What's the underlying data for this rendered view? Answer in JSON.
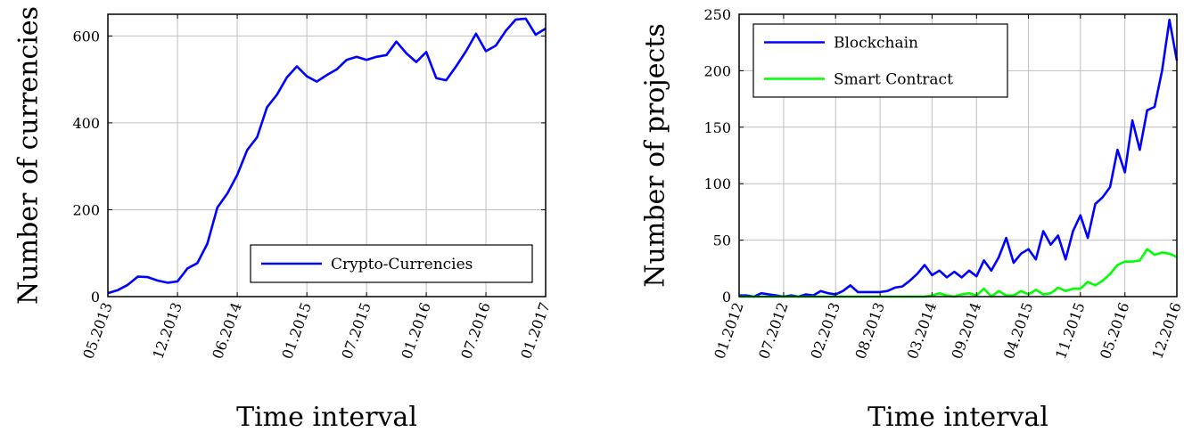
{
  "chart_data": [
    {
      "type": "line",
      "xlabel": "Time interval",
      "ylabel": "Number of currencies",
      "ylim": [
        0,
        650
      ],
      "xlim": [
        0,
        44
      ],
      "grid": true,
      "legend_position": "bottom-right",
      "x_ticks": [
        {
          "x": 0,
          "label": "05.2013"
        },
        {
          "x": 7,
          "label": "12.2013"
        },
        {
          "x": 13,
          "label": "06.2014"
        },
        {
          "x": 20,
          "label": "01.2015"
        },
        {
          "x": 26,
          "label": "07.2015"
        },
        {
          "x": 32,
          "label": "01.2016"
        },
        {
          "x": 38,
          "label": "07.2016"
        },
        {
          "x": 44,
          "label": "01.2017"
        }
      ],
      "y_ticks": [
        {
          "y": 0,
          "label": "0"
        },
        {
          "y": 200,
          "label": "200"
        },
        {
          "y": 400,
          "label": "400"
        },
        {
          "y": 600,
          "label": "600"
        }
      ],
      "series": [
        {
          "name": "Crypto-Currencies",
          "color": "#0000ff",
          "values": [
            8,
            15,
            27,
            46,
            45,
            37,
            32,
            35,
            65,
            77,
            122,
            205,
            237,
            280,
            337,
            367,
            436,
            465,
            505,
            530,
            507,
            495,
            510,
            523,
            545,
            552,
            545,
            552,
            556,
            587,
            560,
            540,
            563,
            503,
            498,
            530,
            565,
            605,
            565,
            578,
            612,
            638,
            640,
            603,
            617
          ]
        }
      ]
    },
    {
      "type": "line",
      "xlabel": "Time interval",
      "ylabel": "Number of projects",
      "ylim": [
        0,
        250
      ],
      "xlim": [
        0,
        59
      ],
      "grid": true,
      "legend_position": "top-left",
      "x_ticks": [
        {
          "x": 0,
          "label": "01.2012"
        },
        {
          "x": 6,
          "label": "07.2012"
        },
        {
          "x": 13,
          "label": "02.2013"
        },
        {
          "x": 19,
          "label": "08.2013"
        },
        {
          "x": 26,
          "label": "03.2014"
        },
        {
          "x": 32,
          "label": "09.2014"
        },
        {
          "x": 39,
          "label": "04.2015"
        },
        {
          "x": 46,
          "label": "11.2015"
        },
        {
          "x": 52,
          "label": "05.2016"
        },
        {
          "x": 59,
          "label": "12.2016"
        }
      ],
      "y_ticks": [
        {
          "y": 0,
          "label": "0"
        },
        {
          "y": 50,
          "label": "50"
        },
        {
          "y": 100,
          "label": "100"
        },
        {
          "y": 150,
          "label": "150"
        },
        {
          "y": 200,
          "label": "200"
        },
        {
          "y": 250,
          "label": "250"
        }
      ],
      "series": [
        {
          "name": "Blockchain",
          "color": "#0000ff",
          "values": [
            1,
            1,
            0,
            3,
            2,
            1,
            0,
            1,
            0,
            2,
            1,
            5,
            3,
            2,
            5,
            10,
            4,
            4,
            4,
            4,
            5,
            8,
            9,
            14,
            20,
            28,
            19,
            23,
            17,
            22,
            17,
            23,
            18,
            32,
            23,
            35,
            52,
            30,
            38,
            42,
            33,
            58,
            46,
            54,
            33,
            58,
            72,
            52,
            82,
            88,
            97,
            130,
            110,
            156,
            130,
            165,
            168,
            200,
            245,
            209
          ]
        },
        {
          "name": "Smart Contract",
          "color": "#00ff00",
          "values": [
            0,
            0,
            0,
            0,
            0,
            0,
            0,
            0,
            0,
            0,
            0,
            0,
            0,
            0,
            0,
            0,
            0,
            0,
            0,
            0,
            0,
            0,
            0,
            0,
            0,
            0,
            1,
            3,
            1,
            0,
            2,
            3,
            1,
            7,
            0,
            5,
            1,
            1,
            5,
            2,
            6,
            2,
            3,
            8,
            5,
            7,
            7,
            13,
            10,
            14,
            20,
            28,
            31,
            31,
            32,
            42,
            37,
            39,
            38,
            35
          ]
        }
      ]
    }
  ]
}
